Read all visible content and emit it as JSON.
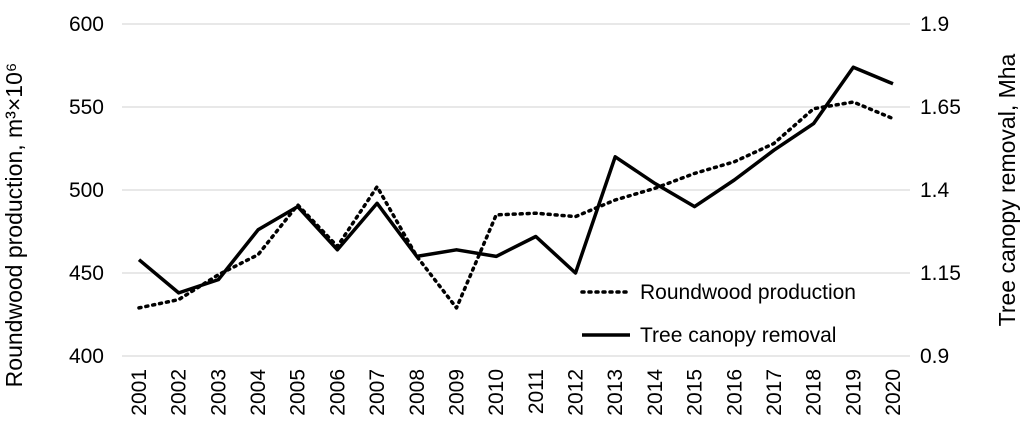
{
  "chart_data": {
    "type": "line",
    "x": [
      "2001",
      "2002",
      "2003",
      "2004",
      "2005",
      "2006",
      "2007",
      "2008",
      "2009",
      "2010",
      "2011",
      "2012",
      "2013",
      "2014",
      "2015",
      "2016",
      "2017",
      "2018",
      "2019",
      "2020"
    ],
    "series": [
      {
        "name": "Roundwood production",
        "axis": "left",
        "style": "dotted",
        "values": [
          429,
          434,
          449,
          461,
          491,
          466,
          502,
          460,
          429,
          485,
          486,
          484,
          494,
          501,
          510,
          517,
          528,
          549,
          553,
          543
        ]
      },
      {
        "name": "Tree canopy removal",
        "axis": "right",
        "style": "solid",
        "values": [
          1.19,
          1.09,
          1.13,
          1.28,
          1.35,
          1.22,
          1.36,
          1.2,
          1.22,
          1.2,
          1.26,
          1.15,
          1.5,
          1.42,
          1.35,
          1.43,
          1.52,
          1.6,
          1.77,
          1.72
        ]
      }
    ],
    "ylabel": "Roundwood production, m³×10⁶",
    "y2label": "Tree canopy removal, Mha",
    "ylim": [
      400,
      600
    ],
    "yticks": [
      "400",
      "450",
      "500",
      "550",
      "600"
    ],
    "y2lim": [
      0.9,
      1.9
    ],
    "y2ticks": [
      "0.9",
      "1.15",
      "1.4",
      "1.65",
      "1.9"
    ],
    "grid": true,
    "legend_position": "bottom-right",
    "legend": {
      "roundwood": "Roundwood production",
      "canopy": "Tree canopy removal"
    }
  }
}
